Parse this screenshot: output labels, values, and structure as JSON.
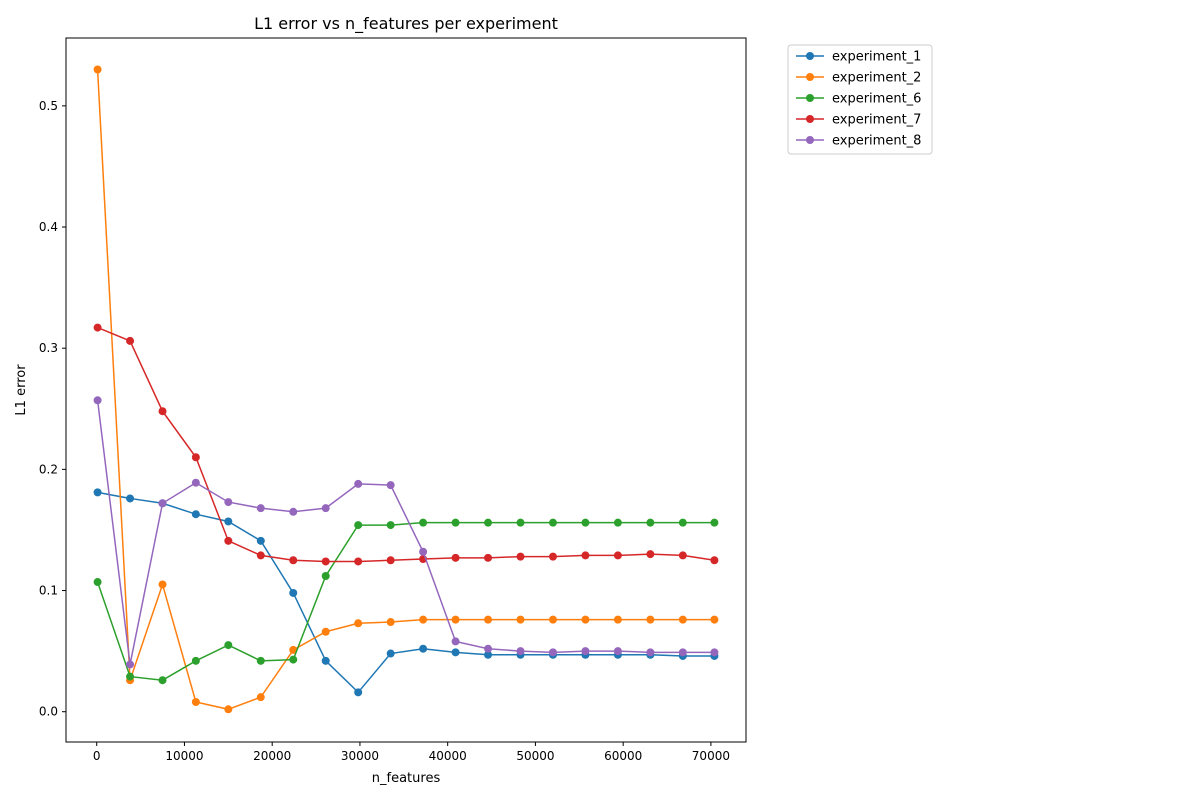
{
  "chart_data": {
    "type": "line",
    "title": "L1 error vs n_features per experiment",
    "xlabel": "n_features",
    "ylabel": "L1 error",
    "xlim": [
      -3500,
      74000
    ],
    "ylim": [
      -0.025,
      0.556
    ],
    "xticks": [
      0,
      10000,
      20000,
      30000,
      40000,
      50000,
      60000,
      70000
    ],
    "xtick_labels": [
      "0",
      "10000",
      "20000",
      "30000",
      "40000",
      "50000",
      "60000",
      "70000"
    ],
    "yticks": [
      0.0,
      0.1,
      0.2,
      0.3,
      0.4,
      0.5
    ],
    "ytick_labels": [
      "0.0",
      "0.1",
      "0.2",
      "0.3",
      "0.4",
      "0.5"
    ],
    "grid": false,
    "legend_position": "outside-top-right",
    "x": [
      100,
      3800,
      7500,
      11300,
      15000,
      18700,
      22400,
      26100,
      29800,
      33500,
      37200,
      40900,
      44600,
      48300,
      52000,
      55700,
      59400,
      63100,
      66800,
      70400
    ],
    "series": [
      {
        "name": "experiment_1",
        "color": "#1f77b4",
        "values": [
          0.181,
          0.176,
          0.172,
          0.163,
          0.157,
          0.141,
          0.098,
          0.042,
          0.016,
          0.048,
          0.052,
          0.049,
          0.047,
          0.047,
          0.047,
          0.047,
          0.047,
          0.047,
          0.046,
          0.046
        ]
      },
      {
        "name": "experiment_2",
        "color": "#ff7f0e",
        "values": [
          0.53,
          0.026,
          0.105,
          0.008,
          0.002,
          0.012,
          0.051,
          0.066,
          0.073,
          0.074,
          0.076,
          0.076,
          0.076,
          0.076,
          0.076,
          0.076,
          0.076,
          0.076,
          0.076,
          0.076
        ]
      },
      {
        "name": "experiment_6",
        "color": "#2ca02c",
        "values": [
          0.107,
          0.029,
          0.026,
          0.042,
          0.055,
          0.042,
          0.043,
          0.112,
          0.154,
          0.154,
          0.156,
          0.156,
          0.156,
          0.156,
          0.156,
          0.156,
          0.156,
          0.156,
          0.156,
          0.156
        ]
      },
      {
        "name": "experiment_7",
        "color": "#d62728",
        "values": [
          0.317,
          0.306,
          0.248,
          0.21,
          0.141,
          0.129,
          0.125,
          0.124,
          0.124,
          0.125,
          0.126,
          0.127,
          0.127,
          0.128,
          0.128,
          0.129,
          0.129,
          0.13,
          0.129,
          0.125
        ]
      },
      {
        "name": "experiment_8",
        "color": "#9467bd",
        "values": [
          0.257,
          0.039,
          0.172,
          0.189,
          0.173,
          0.168,
          0.165,
          0.168,
          0.188,
          0.187,
          0.132,
          0.058,
          0.052,
          0.05,
          0.049,
          0.05,
          0.05,
          0.049,
          0.049,
          0.049
        ]
      }
    ]
  }
}
